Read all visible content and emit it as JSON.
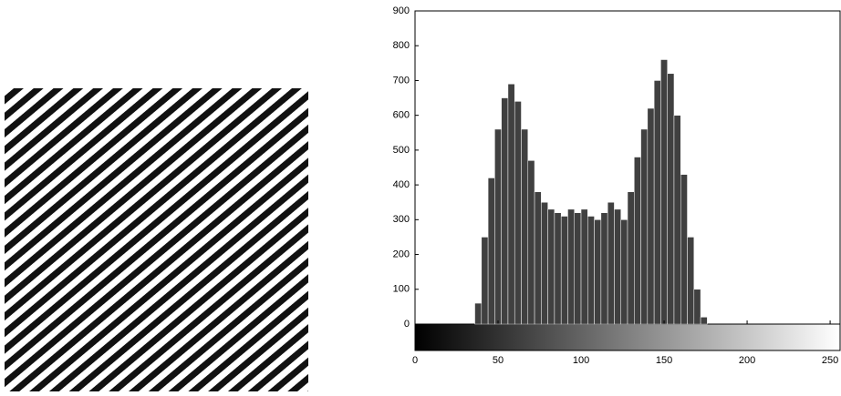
{
  "chart_data": {
    "type": "histogram",
    "bins": [
      0,
      4,
      8,
      12,
      16,
      20,
      24,
      28,
      32,
      36,
      40,
      44,
      48,
      52,
      56,
      60,
      64,
      68,
      72,
      76,
      80,
      84,
      88,
      92,
      96,
      100,
      104,
      108,
      112,
      116,
      120,
      124,
      128,
      132,
      136,
      140,
      144,
      148,
      152,
      156,
      160,
      164,
      168,
      172,
      176,
      180,
      184,
      188,
      192,
      196,
      200,
      204,
      208,
      212,
      216,
      220,
      224,
      228,
      232,
      236,
      240,
      244,
      248,
      252,
      256
    ],
    "values": [
      0,
      0,
      0,
      0,
      0,
      0,
      0,
      0,
      0,
      60,
      250,
      420,
      560,
      650,
      690,
      640,
      560,
      470,
      380,
      350,
      330,
      320,
      310,
      330,
      320,
      330,
      310,
      300,
      320,
      350,
      330,
      300,
      380,
      480,
      560,
      620,
      700,
      760,
      720,
      600,
      430,
      250,
      100,
      20,
      0,
      0,
      0,
      0,
      0,
      0,
      0,
      0,
      0,
      0,
      0,
      0,
      0,
      0,
      0,
      0,
      0,
      0,
      0,
      0
    ],
    "color": "#000000",
    "xlim": [
      0,
      256
    ],
    "xticks": [
      0,
      50,
      100,
      150,
      200,
      250
    ],
    "ylim": [
      0,
      900
    ],
    "yticks": [
      0,
      100,
      200,
      300,
      400,
      500,
      600,
      700,
      800,
      900
    ]
  }
}
